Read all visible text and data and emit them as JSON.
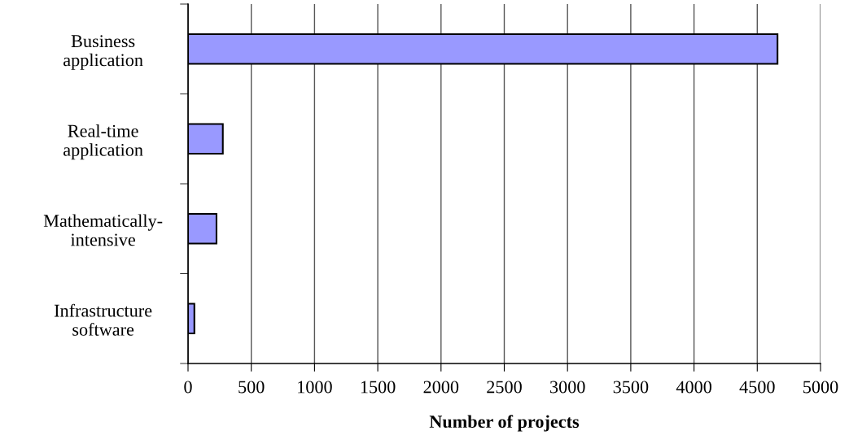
{
  "chart_data": {
    "type": "bar",
    "orientation": "horizontal",
    "xlabel": "Number of projects",
    "categories": [
      "Business\napplication",
      "Real-time\napplication",
      "Mathematically-\nintensive",
      "Infrastructure\nsoftware"
    ],
    "values": [
      4660,
      275,
      225,
      50
    ],
    "color": "#9999ff",
    "xlim": [
      0,
      5000
    ],
    "xticks": [
      0,
      500,
      1000,
      1500,
      2000,
      2500,
      3000,
      3500,
      4000,
      4500,
      5000
    ],
    "grid": "x",
    "legend": false
  }
}
